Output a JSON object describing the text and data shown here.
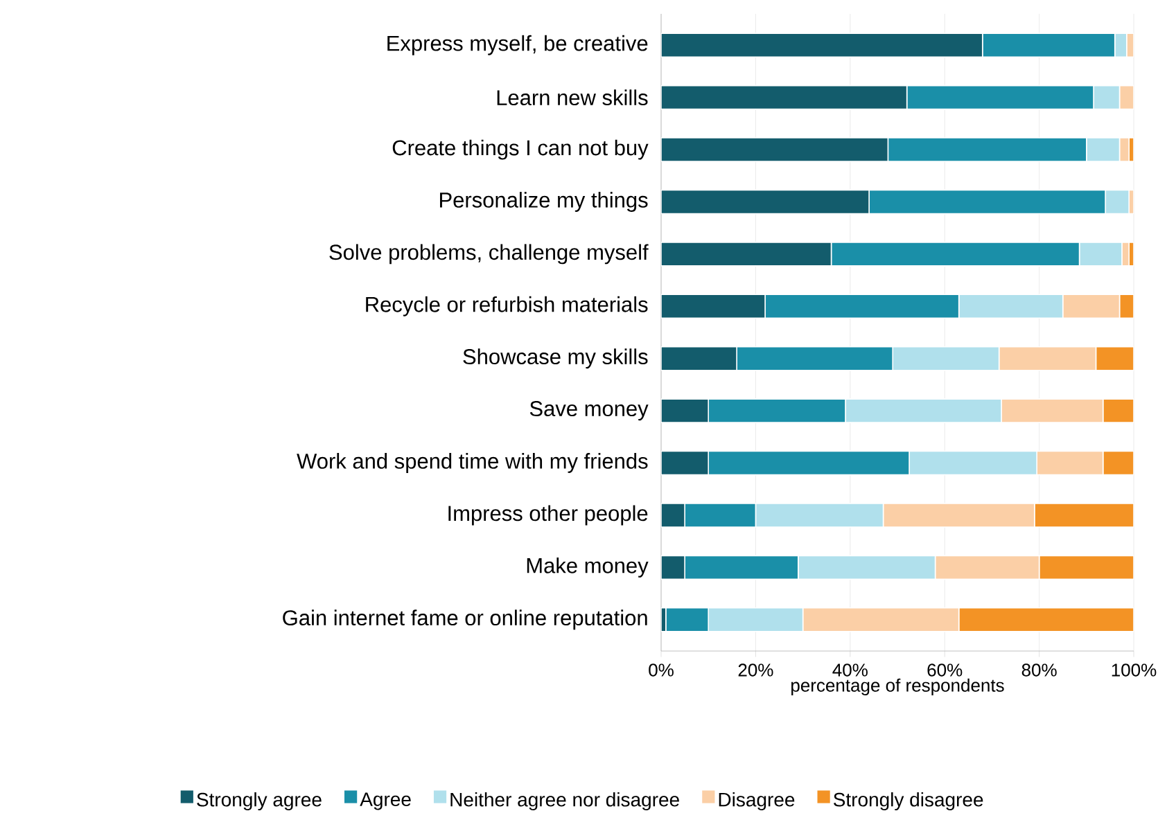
{
  "chart_data": {
    "type": "bar",
    "orientation": "horizontal",
    "stacked": true,
    "xlabel": "percentage of respondents",
    "categories": [
      "Express myself, be creative",
      "Learn new skills",
      "Create things I can not buy",
      "Personalize my things",
      "Solve problems, challenge myself",
      "Recycle or refurbish materials",
      "Showcase my skills",
      "Save money",
      "Work and spend time with my friends",
      "Impress other people",
      "Make money",
      "Gain internet fame or online reputation"
    ],
    "series": [
      {
        "name": "Strongly agree",
        "color": "#135c6c",
        "values": [
          68,
          52,
          48,
          44,
          36,
          22,
          16,
          10,
          10,
          5,
          5,
          1
        ]
      },
      {
        "name": "Agree",
        "color": "#1a8fa8",
        "values": [
          28,
          39.5,
          42,
          50,
          52.5,
          41,
          33,
          29,
          42.5,
          15,
          24,
          9
        ]
      },
      {
        "name": "Neither agree nor disagree",
        "color": "#b0e0ec",
        "values": [
          2.5,
          5.5,
          7,
          5,
          9,
          22,
          22.5,
          33,
          27,
          27,
          29,
          20
        ]
      },
      {
        "name": "Disagree",
        "color": "#fbcfa6",
        "values": [
          1.5,
          3,
          2,
          1,
          1.5,
          12,
          20.5,
          21.5,
          14,
          32,
          22,
          33
        ]
      },
      {
        "name": "Strongly disagree",
        "color": "#f39325",
        "values": [
          0,
          0,
          1,
          0,
          1,
          3,
          8,
          6.5,
          6.5,
          21,
          20,
          37
        ]
      }
    ],
    "xlim": [
      0,
      100
    ],
    "xticks": [
      {
        "value": 0,
        "label": "0%"
      },
      {
        "value": 20,
        "label": "20%"
      },
      {
        "value": 40,
        "label": "40%"
      },
      {
        "value": 60,
        "label": "60%"
      },
      {
        "value": 80,
        "label": "80%"
      },
      {
        "value": 100,
        "label": "100%"
      }
    ],
    "grid": "x",
    "legend": "bottom"
  }
}
